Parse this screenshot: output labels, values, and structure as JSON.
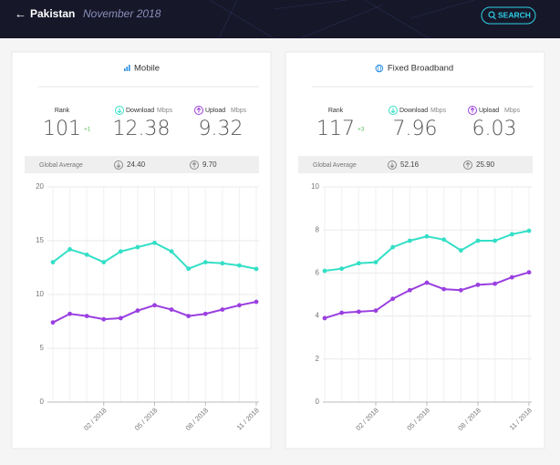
{
  "header": {
    "country": "Pakistan",
    "date": "November 2018",
    "search": "SEARCH"
  },
  "panels": [
    {
      "title": "Mobile",
      "rank_label": "Rank",
      "rank": "101",
      "rank_change": "+1",
      "download_label": "Download",
      "upload_label": "Upload",
      "unit": "Mbps",
      "download": "12.38",
      "upload": "9.32",
      "global_label": "Global Average",
      "global_download": "24.40",
      "global_upload": "9.70"
    },
    {
      "title": "Fixed Broadband",
      "rank_label": "Rank",
      "rank": "117",
      "rank_change": "+3",
      "download_label": "Download",
      "upload_label": "Upload",
      "unit": "Mbps",
      "download": "7.96",
      "upload": "6.03",
      "global_label": "Global Average",
      "global_download": "52.16",
      "global_upload": "25.90"
    }
  ],
  "chart_data": [
    {
      "type": "line",
      "categories": [
        null,
        null,
        null,
        "02 / 2018",
        null,
        null,
        "05 / 2018",
        null,
        null,
        "08 / 2018",
        null,
        null,
        "11 / 2018"
      ],
      "series": [
        {
          "color": "#33dfc6",
          "values": [
            13.0,
            14.2,
            13.7,
            13.0,
            14.0,
            14.4,
            14.8,
            14.0,
            12.4,
            13.0,
            12.9,
            12.7,
            12.38
          ]
        },
        {
          "color": "#9a3fe0",
          "values": [
            7.4,
            8.2,
            8.0,
            7.7,
            7.8,
            8.5,
            9.0,
            8.6,
            8.0,
            8.2,
            8.6,
            9.0,
            9.32
          ]
        }
      ],
      "ylim": [
        0,
        20
      ],
      "yticks": [
        0,
        5,
        10,
        15,
        20
      ],
      "grid": true
    },
    {
      "type": "line",
      "categories": [
        null,
        null,
        null,
        "02 / 2018",
        null,
        null,
        "05 / 2018",
        null,
        null,
        "08 / 2018",
        null,
        null,
        "11 / 2018"
      ],
      "series": [
        {
          "color": "#33dfc6",
          "values": [
            6.1,
            6.2,
            6.45,
            6.5,
            7.2,
            7.5,
            7.7,
            7.55,
            7.05,
            7.5,
            7.5,
            7.8,
            7.96
          ]
        },
        {
          "color": "#9a3fe0",
          "values": [
            3.9,
            4.15,
            4.2,
            4.25,
            4.8,
            5.2,
            5.55,
            5.25,
            5.2,
            5.45,
            5.5,
            5.8,
            6.03
          ]
        }
      ],
      "ylim": [
        0,
        10
      ],
      "yticks": [
        0,
        2,
        4,
        6,
        8,
        10
      ],
      "grid": true
    }
  ]
}
